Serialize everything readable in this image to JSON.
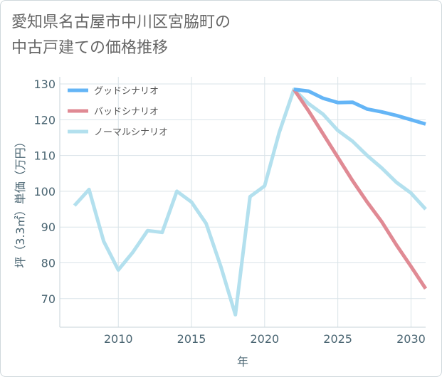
{
  "title_lines": [
    "愛知県名古屋市中川区宮脇町の",
    "中古戸建ての価格推移"
  ],
  "chart_data": {
    "type": "line",
    "title": "愛知県名古屋市中川区宮脇町の中古戸建ての価格推移",
    "xlabel": "年",
    "ylabel": "坪（3.3㎡）単価（万円）",
    "xlim": [
      2006,
      2031
    ],
    "ylim": [
      62,
      132
    ],
    "xticks": [
      2010,
      2015,
      2020,
      2025,
      2030
    ],
    "yticks": [
      70,
      80,
      90,
      100,
      110,
      120,
      130
    ],
    "grid": true,
    "legend_position": "top-left",
    "series": [
      {
        "name": "グッドシナリオ",
        "color": "#64b5f6",
        "x": [
          2022,
          2023,
          2024,
          2025,
          2026,
          2027,
          2028,
          2029,
          2030,
          2031
        ],
        "y": [
          128.5,
          128.0,
          126.0,
          124.8,
          124.9,
          123.0,
          122.2,
          121.2,
          120.0,
          118.8
        ]
      },
      {
        "name": "バッドシナリオ",
        "color": "#e08a94",
        "x": [
          2022,
          2023,
          2024,
          2025,
          2026,
          2027,
          2028,
          2029,
          2030,
          2031
        ],
        "y": [
          128.5,
          122.5,
          116.0,
          109.5,
          103.0,
          97.0,
          91.5,
          85.0,
          79.0,
          72.8
        ]
      },
      {
        "name": "ノーマルシナリオ",
        "color": "#b3e0ee",
        "x": [
          2007,
          2008,
          2009,
          2010,
          2011,
          2012,
          2013,
          2014,
          2015,
          2016,
          2017,
          2018,
          2019,
          2020,
          2021,
          2022,
          2023,
          2024,
          2025,
          2026,
          2027,
          2028,
          2029,
          2030,
          2031
        ],
        "y": [
          96.0,
          100.5,
          86.0,
          78.0,
          83.0,
          89.0,
          88.5,
          100.0,
          97.0,
          91.0,
          79.0,
          65.5,
          98.5,
          101.5,
          116.5,
          128.5,
          124.5,
          121.5,
          117.0,
          114.0,
          110.0,
          106.5,
          102.5,
          99.5,
          95.0
        ]
      }
    ]
  }
}
